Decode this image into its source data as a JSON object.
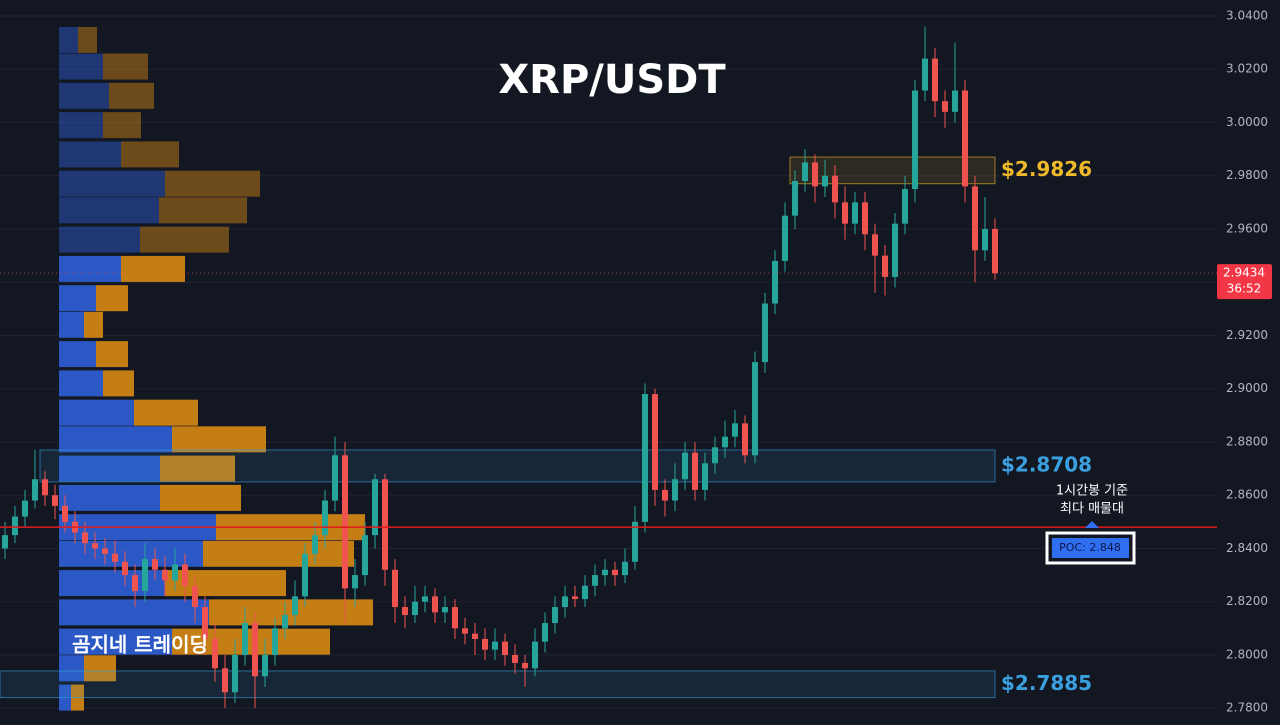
{
  "chart_data": {
    "type": "candlestick",
    "title": "XRP/USDT",
    "watermark": "곰지네 트레이딩",
    "annotation": [
      "1시간봉 기준",
      "최다 매물대"
    ],
    "up_color": "#26a69a",
    "down_color": "#ef5350",
    "ylim": [
      2.7737,
      3.046
    ],
    "yticks": [
      {
        "value": 2.78,
        "label": "2.7800"
      },
      {
        "value": 2.8,
        "label": "2.8000"
      },
      {
        "value": 2.82,
        "label": "2.8200"
      },
      {
        "value": 2.84,
        "label": "2.8400"
      },
      {
        "value": 2.86,
        "label": "2.8600"
      },
      {
        "value": 2.88,
        "label": "2.8800"
      },
      {
        "value": 2.9,
        "label": "2.9000"
      },
      {
        "value": 2.92,
        "label": "2.9200"
      },
      {
        "value": 2.94,
        "label": "2.9400"
      },
      {
        "value": 2.96,
        "label": "2.9600"
      },
      {
        "value": 2.98,
        "label": "2.9800"
      },
      {
        "value": 3.0,
        "label": "3.0000"
      },
      {
        "value": 3.02,
        "label": "3.0200"
      },
      {
        "value": 3.04,
        "label": "3.0400"
      }
    ],
    "grid": true,
    "last_price": {
      "value": 2.9434,
      "label": "2.9434",
      "countdown": "36:52"
    },
    "poc": {
      "value": 2.848,
      "label": "POC: 2.848",
      "color": "#e01b1b"
    },
    "zones": [
      {
        "label": "$2.9826",
        "high": 2.987,
        "low": 2.977,
        "color": "#f0b92a"
      },
      {
        "label": "$2.8708",
        "high": 2.877,
        "low": 2.865,
        "color": "#3aa0e0"
      },
      {
        "label": "$2.7885",
        "high": 2.794,
        "low": 2.784,
        "color": "#3aa0e0"
      }
    ],
    "value_area_high": 2.947,
    "profile": [
      {
        "price": 3.031,
        "buy": 19,
        "sell": 19
      },
      {
        "price": 3.021,
        "buy": 44,
        "sell": 45
      },
      {
        "price": 3.01,
        "buy": 50,
        "sell": 45
      },
      {
        "price": 2.999,
        "buy": 44,
        "sell": 38
      },
      {
        "price": 2.988,
        "buy": 62,
        "sell": 58
      },
      {
        "price": 2.977,
        "buy": 106,
        "sell": 95
      },
      {
        "price": 2.967,
        "buy": 100,
        "sell": 88
      },
      {
        "price": 2.956,
        "buy": 81,
        "sell": 89
      },
      {
        "price": 2.945,
        "buy": 62,
        "sell": 64
      },
      {
        "price": 2.934,
        "buy": 37,
        "sell": 32
      },
      {
        "price": 2.924,
        "buy": 25,
        "sell": 19
      },
      {
        "price": 2.913,
        "buy": 37,
        "sell": 32
      },
      {
        "price": 2.902,
        "buy": 44,
        "sell": 31
      },
      {
        "price": 2.891,
        "buy": 75,
        "sell": 64
      },
      {
        "price": 2.881,
        "buy": 113,
        "sell": 94
      },
      {
        "price": 2.87,
        "buy": 101,
        "sell": 75
      },
      {
        "price": 2.859,
        "buy": 101,
        "sell": 81
      },
      {
        "price": 2.848,
        "buy": 157,
        "sell": 149
      },
      {
        "price": 2.838,
        "buy": 144,
        "sell": 151
      },
      {
        "price": 2.827,
        "buy": 106,
        "sell": 121
      },
      {
        "price": 2.816,
        "buy": 150,
        "sell": 164
      },
      {
        "price": 2.805,
        "buy": 113,
        "sell": 158
      },
      {
        "price": 2.795,
        "buy": 25,
        "sell": 32
      },
      {
        "price": 2.784,
        "buy": 12,
        "sell": 13
      }
    ],
    "candles": [
      [
        2.84,
        2.85,
        2.836,
        2.845
      ],
      [
        2.845,
        2.856,
        2.842,
        2.852
      ],
      [
        2.852,
        2.862,
        2.848,
        2.858
      ],
      [
        2.858,
        2.877,
        2.855,
        2.866
      ],
      [
        2.866,
        2.869,
        2.856,
        2.86
      ],
      [
        2.86,
        2.864,
        2.851,
        2.856
      ],
      [
        2.856,
        2.86,
        2.846,
        2.85
      ],
      [
        2.85,
        2.854,
        2.842,
        2.846
      ],
      [
        2.846,
        2.85,
        2.838,
        2.842
      ],
      [
        2.842,
        2.846,
        2.836,
        2.84
      ],
      [
        2.84,
        2.844,
        2.834,
        2.838
      ],
      [
        2.838,
        2.843,
        2.831,
        2.835
      ],
      [
        2.835,
        2.839,
        2.826,
        2.83
      ],
      [
        2.83,
        2.834,
        2.818,
        2.824
      ],
      [
        2.824,
        2.842,
        2.82,
        2.836
      ],
      [
        2.836,
        2.84,
        2.828,
        2.832
      ],
      [
        2.832,
        2.837,
        2.822,
        2.828
      ],
      [
        2.828,
        2.84,
        2.824,
        2.834
      ],
      [
        2.834,
        2.838,
        2.82,
        2.826
      ],
      [
        2.826,
        2.83,
        2.812,
        2.818
      ],
      [
        2.818,
        2.822,
        2.8,
        2.806
      ],
      [
        2.806,
        2.812,
        2.79,
        2.795
      ],
      [
        2.795,
        2.8,
        2.78,
        2.786
      ],
      [
        2.786,
        2.806,
        2.782,
        2.8
      ],
      [
        2.8,
        2.818,
        2.796,
        2.812
      ],
      [
        2.812,
        2.816,
        2.78,
        2.792
      ],
      [
        2.792,
        2.806,
        2.788,
        2.8
      ],
      [
        2.8,
        2.814,
        2.796,
        2.81
      ],
      [
        2.81,
        2.82,
        2.806,
        2.815
      ],
      [
        2.815,
        2.828,
        2.811,
        2.822
      ],
      [
        2.822,
        2.842,
        2.818,
        2.838
      ],
      [
        2.838,
        2.85,
        2.834,
        2.845
      ],
      [
        2.845,
        2.862,
        2.84,
        2.858
      ],
      [
        2.858,
        2.882,
        2.854,
        2.875
      ],
      [
        2.875,
        2.88,
        2.812,
        2.825
      ],
      [
        2.825,
        2.836,
        2.818,
        2.83
      ],
      [
        2.83,
        2.85,
        2.826,
        2.845
      ],
      [
        2.845,
        2.868,
        2.84,
        2.866
      ],
      [
        2.866,
        2.868,
        2.826,
        2.832
      ],
      [
        2.832,
        2.836,
        2.812,
        2.818
      ],
      [
        2.818,
        2.822,
        2.81,
        2.815
      ],
      [
        2.815,
        2.826,
        2.812,
        2.82
      ],
      [
        2.82,
        2.826,
        2.816,
        2.822
      ],
      [
        2.822,
        2.825,
        2.812,
        2.816
      ],
      [
        2.816,
        2.822,
        2.812,
        2.818
      ],
      [
        2.818,
        2.821,
        2.806,
        2.81
      ],
      [
        2.81,
        2.814,
        2.804,
        2.808
      ],
      [
        2.808,
        2.812,
        2.8,
        2.806
      ],
      [
        2.806,
        2.81,
        2.798,
        2.802
      ],
      [
        2.802,
        2.81,
        2.798,
        2.805
      ],
      [
        2.805,
        2.808,
        2.796,
        2.8
      ],
      [
        2.8,
        2.804,
        2.793,
        2.797
      ],
      [
        2.797,
        2.8,
        2.788,
        2.795
      ],
      [
        2.795,
        2.81,
        2.792,
        2.805
      ],
      [
        2.805,
        2.816,
        2.801,
        2.812
      ],
      [
        2.812,
        2.822,
        2.808,
        2.818
      ],
      [
        2.818,
        2.826,
        2.814,
        2.822
      ],
      [
        2.822,
        2.826,
        2.818,
        2.821
      ],
      [
        2.821,
        2.83,
        2.818,
        2.826
      ],
      [
        2.826,
        2.834,
        2.822,
        2.83
      ],
      [
        2.83,
        2.836,
        2.826,
        2.832
      ],
      [
        2.832,
        2.835,
        2.826,
        2.83
      ],
      [
        2.83,
        2.84,
        2.827,
        2.835
      ],
      [
        2.835,
        2.856,
        2.832,
        2.85
      ],
      [
        2.85,
        2.902,
        2.846,
        2.898
      ],
      [
        2.898,
        2.9,
        2.856,
        2.862
      ],
      [
        2.862,
        2.866,
        2.852,
        2.858
      ],
      [
        2.858,
        2.872,
        2.854,
        2.866
      ],
      [
        2.866,
        2.88,
        2.862,
        2.876
      ],
      [
        2.876,
        2.88,
        2.858,
        2.862
      ],
      [
        2.862,
        2.876,
        2.858,
        2.872
      ],
      [
        2.872,
        2.882,
        2.868,
        2.878
      ],
      [
        2.878,
        2.888,
        2.874,
        2.882
      ],
      [
        2.882,
        2.892,
        2.878,
        2.887
      ],
      [
        2.887,
        2.89,
        2.872,
        2.875
      ],
      [
        2.875,
        2.914,
        2.872,
        2.91
      ],
      [
        2.91,
        2.936,
        2.906,
        2.932
      ],
      [
        2.932,
        2.952,
        2.928,
        2.948
      ],
      [
        2.948,
        2.97,
        2.944,
        2.965
      ],
      [
        2.965,
        2.982,
        2.96,
        2.978
      ],
      [
        2.978,
        2.99,
        2.974,
        2.985
      ],
      [
        2.985,
        2.988,
        2.97,
        2.976
      ],
      [
        2.976,
        2.986,
        2.972,
        2.98
      ],
      [
        2.98,
        2.984,
        2.964,
        2.97
      ],
      [
        2.97,
        2.976,
        2.956,
        2.962
      ],
      [
        2.962,
        2.974,
        2.958,
        2.97
      ],
      [
        2.97,
        2.974,
        2.952,
        2.958
      ],
      [
        2.958,
        2.962,
        2.936,
        2.95
      ],
      [
        2.95,
        2.954,
        2.935,
        2.942
      ],
      [
        2.942,
        2.966,
        2.938,
        2.962
      ],
      [
        2.962,
        2.98,
        2.958,
        2.975
      ],
      [
        2.975,
        3.016,
        2.97,
        3.012
      ],
      [
        3.012,
        3.036,
        3.008,
        3.024
      ],
      [
        3.024,
        3.028,
        3.002,
        3.008
      ],
      [
        3.008,
        3.012,
        2.998,
        3.004
      ],
      [
        3.004,
        3.03,
        3.0,
        3.012
      ],
      [
        3.012,
        3.016,
        2.97,
        2.976
      ],
      [
        2.976,
        2.98,
        2.94,
        2.952
      ],
      [
        2.952,
        2.972,
        2.948,
        2.96
      ],
      [
        2.96,
        2.964,
        2.941,
        2.9434
      ]
    ]
  }
}
